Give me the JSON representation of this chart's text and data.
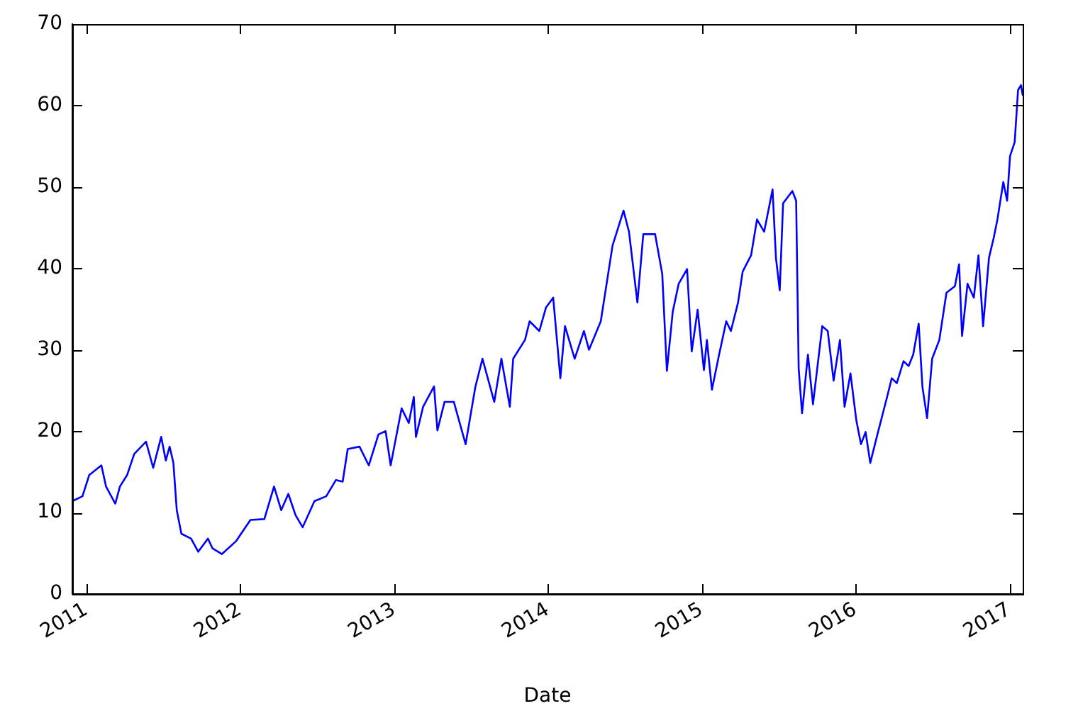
{
  "chart_data": {
    "type": "line",
    "xlabel": "Date",
    "color": "#0000ff",
    "marker": "none",
    "xlim": [
      "2010-11-29",
      "2017-02-02"
    ],
    "xticks": [
      "2011",
      "2012",
      "2013",
      "2014",
      "2015",
      "2016",
      "2017"
    ],
    "ylim": [
      0,
      70
    ],
    "yticks": [
      0,
      10,
      20,
      30,
      40,
      50,
      60,
      70
    ],
    "x": [
      "2010-11-29",
      "2010-12-23",
      "2011-01-08",
      "2011-02-06",
      "2011-02-17",
      "2011-03-11",
      "2011-03-22",
      "2011-04-08",
      "2011-04-25",
      "2011-05-23",
      "2011-06-09",
      "2011-06-28",
      "2011-07-09",
      "2011-07-18",
      "2011-07-27",
      "2011-08-04",
      "2011-08-15",
      "2011-09-07",
      "2011-09-24",
      "2011-10-17",
      "2011-10-28",
      "2011-11-19",
      "2011-12-23",
      "2012-01-26",
      "2012-02-28",
      "2012-03-22",
      "2012-04-08",
      "2012-04-25",
      "2012-05-12",
      "2012-05-29",
      "2012-06-26",
      "2012-07-24",
      "2012-08-16",
      "2012-09-01",
      "2012-09-13",
      "2012-10-11",
      "2012-11-02",
      "2012-11-25",
      "2012-12-12",
      "2012-12-24",
      "2013-01-19",
      "2013-02-05",
      "2013-02-17",
      "2013-02-22",
      "2013-03-11",
      "2013-04-06",
      "2013-04-14",
      "2013-05-01",
      "2013-05-23",
      "2013-06-20",
      "2013-07-13",
      "2013-07-30",
      "2013-08-27",
      "2013-09-13",
      "2013-10-03",
      "2013-10-11",
      "2013-11-08",
      "2013-11-19",
      "2013-12-12",
      "2013-12-28",
      "2014-01-14",
      "2014-01-31",
      "2014-02-11",
      "2014-03-06",
      "2014-03-28",
      "2014-04-09",
      "2014-05-07",
      "2014-06-04",
      "2014-06-30",
      "2014-07-13",
      "2014-08-02",
      "2014-08-16",
      "2014-09-13",
      "2014-09-30",
      "2014-10-11",
      "2014-10-25",
      "2014-11-08",
      "2014-11-28",
      "2014-12-09",
      "2014-12-23",
      "2015-01-07",
      "2015-01-14",
      "2015-01-26",
      "2015-02-12",
      "2015-03-01",
      "2015-03-12",
      "2015-03-29",
      "2015-04-09",
      "2015-04-29",
      "2015-05-13",
      "2015-05-30",
      "2015-06-19",
      "2015-06-27",
      "2015-07-06",
      "2015-07-14",
      "2015-08-05",
      "2015-08-14",
      "2015-08-20",
      "2015-08-28",
      "2015-09-11",
      "2015-09-23",
      "2015-10-15",
      "2015-10-28",
      "2015-11-11",
      "2015-11-26",
      "2015-12-07",
      "2015-12-21",
      "2016-01-04",
      "2016-01-15",
      "2016-01-26",
      "2016-02-06",
      "2016-02-23",
      "2016-03-17",
      "2016-03-28",
      "2016-04-09",
      "2016-04-25",
      "2016-05-07",
      "2016-05-18",
      "2016-05-31",
      "2016-06-09",
      "2016-06-20",
      "2016-07-02",
      "2016-07-19",
      "2016-08-05",
      "2016-08-25",
      "2016-09-04",
      "2016-09-11",
      "2016-09-24",
      "2016-10-09",
      "2016-10-20",
      "2016-10-31",
      "2016-11-14",
      "2016-11-25",
      "2016-12-04",
      "2016-12-18",
      "2016-12-27",
      "2017-01-03",
      "2017-01-14",
      "2017-01-22",
      "2017-01-29",
      "2017-02-02"
    ],
    "values": [
      11.4,
      12.0,
      14.6,
      15.8,
      13.2,
      11.1,
      13.2,
      14.6,
      17.2,
      18.7,
      15.5,
      19.3,
      16.4,
      18.1,
      16.1,
      10.3,
      7.4,
      6.8,
      5.2,
      6.8,
      5.6,
      4.9,
      6.5,
      9.1,
      9.2,
      13.2,
      10.3,
      12.3,
      9.7,
      8.2,
      11.4,
      12.0,
      14.0,
      13.8,
      17.8,
      18.1,
      15.8,
      19.6,
      20.0,
      15.8,
      22.8,
      21.0,
      24.2,
      19.3,
      23.0,
      25.5,
      20.1,
      23.6,
      23.6,
      18.4,
      25.4,
      28.9,
      23.6,
      28.9,
      23.0,
      28.9,
      31.2,
      33.5,
      32.3,
      35.2,
      36.4,
      26.5,
      32.9,
      28.9,
      32.3,
      30.0,
      33.5,
      42.8,
      47.1,
      44.5,
      35.8,
      44.2,
      44.2,
      39.3,
      27.4,
      34.7,
      38.1,
      39.9,
      29.8,
      34.9,
      27.5,
      31.2,
      25.1,
      29.4,
      33.5,
      32.3,
      35.8,
      39.6,
      41.6,
      46.0,
      44.5,
      49.7,
      41.3,
      37.3,
      48.0,
      49.5,
      48.3,
      27.7,
      22.2,
      29.4,
      23.3,
      32.9,
      32.3,
      26.2,
      31.2,
      23.0,
      27.1,
      21.3,
      18.4,
      19.9,
      16.1,
      19.6,
      24.2,
      26.5,
      25.9,
      28.6,
      28.0,
      29.4,
      33.2,
      25.4,
      21.6,
      28.9,
      31.2,
      37.0,
      37.8,
      40.5,
      31.7,
      38.1,
      36.4,
      41.6,
      32.9,
      41.3,
      43.7,
      46.0,
      50.6,
      48.3,
      53.8,
      55.5,
      61.9,
      62.5,
      61.3
    ]
  }
}
